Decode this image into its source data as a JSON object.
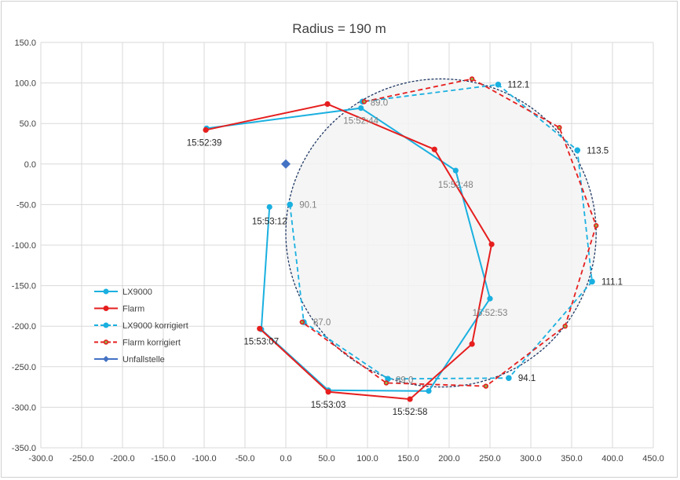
{
  "chart_data": {
    "type": "scatter",
    "title": "Radius = 190 m",
    "xlim": [
      -300,
      450
    ],
    "ylim": [
      -350,
      150
    ],
    "x_ticks": [
      -300,
      -250,
      -200,
      -150,
      -100,
      -50,
      0,
      50,
      100,
      150,
      200,
      250,
      300,
      350,
      400,
      450
    ],
    "y_ticks": [
      -350,
      -300,
      -250,
      -200,
      -150,
      -100,
      -50,
      0,
      50,
      100,
      150
    ],
    "x_tick_labels": [
      "-300.0",
      "-250.0",
      "-200.0",
      "-150.0",
      "-100.0",
      "-50.0",
      "0.0",
      "50.0",
      "100.0",
      "150.0",
      "200.0",
      "250.0",
      "300.0",
      "350.0",
      "400.0",
      "450.0"
    ],
    "y_tick_labels": [
      "-350.0",
      "-300.0",
      "-250.0",
      "-200.0",
      "-150.0",
      "-100.0",
      "-50.0",
      "0.0",
      "50.0",
      "100.0",
      "150.0"
    ],
    "grid": true,
    "legend_position": "left",
    "circle": {
      "center": [
        190,
        -85
      ],
      "radius": 190
    },
    "series": [
      {
        "name": "LX9000",
        "color": "#1ab0e0",
        "style": "solid",
        "points": [
          [
            -97,
            44
          ],
          [
            92,
            69
          ],
          [
            208,
            -8
          ],
          [
            250,
            -166
          ],
          [
            175,
            -280
          ],
          [
            52,
            -279
          ],
          [
            -30,
            -204
          ],
          [
            -20,
            -53
          ]
        ]
      },
      {
        "name": "Flarm",
        "color": "#e61e1e",
        "style": "solid",
        "points": [
          [
            -98,
            42
          ],
          [
            51,
            74
          ],
          [
            182,
            18
          ],
          [
            252,
            -99
          ],
          [
            228,
            -222
          ],
          [
            152,
            -290
          ],
          [
            52,
            -281
          ],
          [
            -32,
            -203
          ]
        ]
      },
      {
        "name": "LX9000 korrigiert",
        "color": "#1ab0e0",
        "style": "dashed",
        "points": [
          [
            5,
            -50
          ],
          [
            22,
            -195
          ],
          [
            125,
            -265
          ],
          [
            273,
            -264
          ],
          [
            375,
            -145
          ],
          [
            357,
            17
          ],
          [
            260,
            98
          ],
          [
            94,
            77
          ]
        ]
      },
      {
        "name": "Flarm korrigiert",
        "color": "#e61e1e",
        "style": "dashed",
        "points": [
          [
            96,
            77
          ],
          [
            228,
            105
          ],
          [
            335,
            45
          ],
          [
            380,
            -76
          ],
          [
            342,
            -200
          ],
          [
            245,
            -274
          ],
          [
            123,
            -270
          ],
          [
            20,
            -195
          ]
        ]
      },
      {
        "name": "Unfallstelle",
        "color": "#4472c4",
        "style": "diamond",
        "points": [
          [
            0,
            0
          ]
        ]
      }
    ],
    "annotations": [
      {
        "text": "15:52:39",
        "x": -98,
        "y": 42,
        "dx": -2,
        "dy": 20,
        "anchor": "middle",
        "color": "#262626"
      },
      {
        "text": "15:52:44",
        "x": 92,
        "y": 69,
        "dx": 0,
        "dy": 20,
        "anchor": "middle",
        "color": "#808080"
      },
      {
        "text": "15:52:48",
        "x": 208,
        "y": -8,
        "dx": 0,
        "dy": 22,
        "anchor": "middle",
        "color": "#808080"
      },
      {
        "text": "15:52:53",
        "x": 250,
        "y": -166,
        "dx": 0,
        "dy": 22,
        "anchor": "middle",
        "color": "#808080"
      },
      {
        "text": "15:52:58",
        "x": 152,
        "y": -290,
        "dx": 0,
        "dy": 20,
        "anchor": "middle",
        "color": "#262626"
      },
      {
        "text": "15:53:03",
        "x": 52,
        "y": -281,
        "dx": 0,
        "dy": 20,
        "anchor": "middle",
        "color": "#262626"
      },
      {
        "text": "15:53:07",
        "x": -32,
        "y": -203,
        "dx": 2,
        "dy": 20,
        "anchor": "middle",
        "color": "#262626"
      },
      {
        "text": "15:53:12",
        "x": -20,
        "y": -53,
        "dx": 0,
        "dy": 22,
        "anchor": "middle",
        "color": "#262626"
      },
      {
        "text": "112.1",
        "x": 260,
        "y": 98,
        "dx": 12,
        "dy": 4,
        "anchor": "start",
        "color": "#262626"
      },
      {
        "text": "89.0",
        "x": 94,
        "y": 77,
        "dx": 10,
        "dy": 5,
        "anchor": "start",
        "color": "#808080"
      },
      {
        "text": "113.5",
        "x": 357,
        "y": 17,
        "dx": 12,
        "dy": 4,
        "anchor": "start",
        "color": "#262626"
      },
      {
        "text": "90.1",
        "x": 5,
        "y": -50,
        "dx": 12,
        "dy": 4,
        "anchor": "start",
        "color": "#808080"
      },
      {
        "text": "111.1",
        "x": 375,
        "y": -145,
        "dx": 12,
        "dy": 4,
        "anchor": "start",
        "color": "#262626"
      },
      {
        "text": "87.0",
        "x": 22,
        "y": -195,
        "dx": 12,
        "dy": 4,
        "anchor": "start",
        "color": "#808080"
      },
      {
        "text": "89.0",
        "x": 125,
        "y": -265,
        "dx": 10,
        "dy": 5,
        "anchor": "start",
        "color": "#808080"
      },
      {
        "text": "94.1",
        "x": 273,
        "y": -264,
        "dx": 12,
        "dy": 4,
        "anchor": "start",
        "color": "#262626"
      }
    ]
  }
}
